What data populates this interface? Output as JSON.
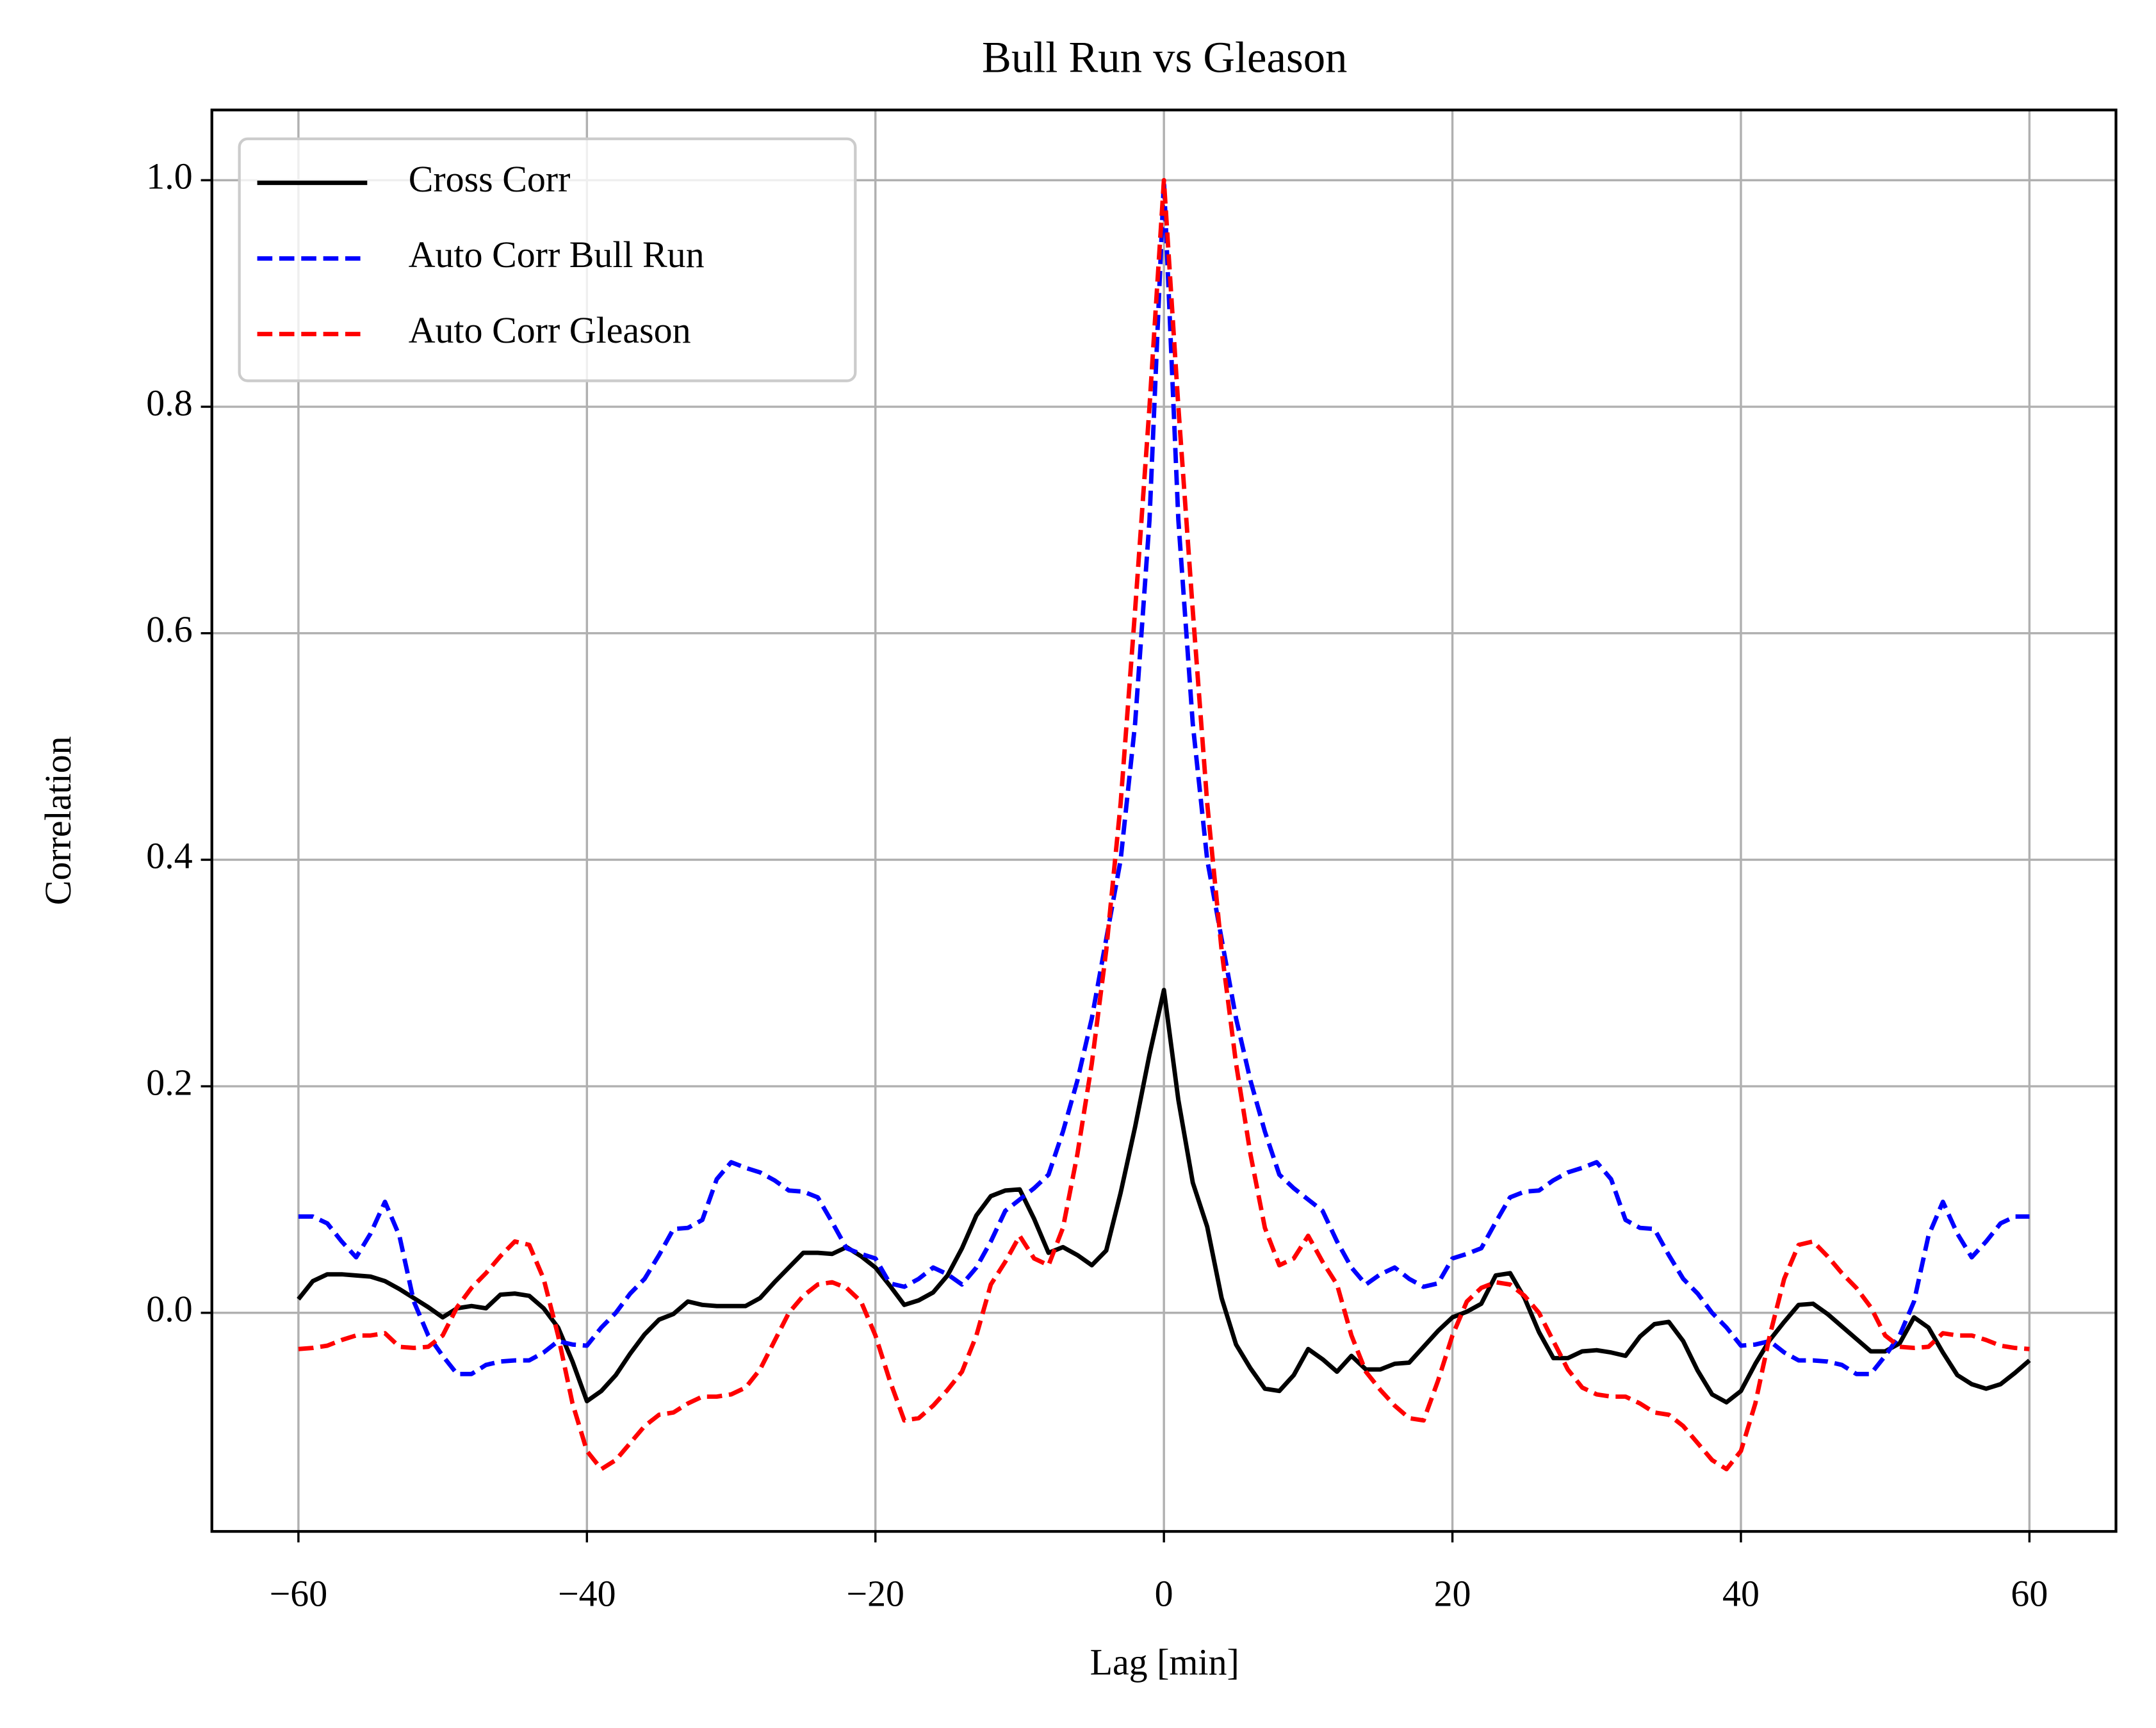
{
  "chart_data": {
    "type": "line",
    "title": "Bull Run vs Gleason",
    "x_label": "Lag [min]",
    "y_label": "Correlation",
    "x": [
      -60,
      -59,
      -58,
      -57,
      -56,
      -55,
      -54,
      -53,
      -52,
      -51,
      -50,
      -49,
      -48,
      -47,
      -46,
      -45,
      -44,
      -43,
      -42,
      -41,
      -40,
      -39,
      -38,
      -37,
      -36,
      -35,
      -34,
      -33,
      -32,
      -31,
      -30,
      -29,
      -28,
      -27,
      -26,
      -25,
      -24,
      -23,
      -22,
      -21,
      -20,
      -19,
      -18,
      -17,
      -16,
      -15,
      -14,
      -13,
      -12,
      -11,
      -10,
      -9,
      -8,
      -7,
      -6,
      -5,
      -4,
      -3,
      -2,
      -1,
      0,
      1,
      2,
      3,
      4,
      5,
      6,
      7,
      8,
      9,
      10,
      11,
      12,
      13,
      14,
      15,
      16,
      17,
      18,
      19,
      20,
      21,
      22,
      23,
      24,
      25,
      26,
      27,
      28,
      29,
      30,
      31,
      32,
      33,
      34,
      35,
      36,
      37,
      38,
      39,
      40,
      41,
      42,
      43,
      44,
      45,
      46,
      47,
      48,
      49,
      50,
      51,
      52,
      53,
      54,
      55,
      56,
      57,
      58,
      59,
      60
    ],
    "series": [
      {
        "name": "Cross Corr",
        "color": "#000000",
        "linestyle": "solid",
        "values": [
          0.012,
          0.028,
          0.034,
          0.034,
          0.033,
          0.032,
          0.028,
          0.021,
          0.013,
          0.005,
          -0.004,
          0.004,
          0.006,
          0.004,
          0.016,
          0.017,
          0.015,
          0.004,
          -0.013,
          -0.043,
          -0.078,
          -0.069,
          -0.055,
          -0.036,
          -0.019,
          -0.006,
          -0.001,
          0.01,
          0.007,
          0.006,
          0.006,
          0.006,
          0.013,
          0.027,
          0.04,
          0.053,
          0.053,
          0.052,
          0.058,
          0.05,
          0.04,
          0.024,
          0.007,
          0.011,
          0.018,
          0.033,
          0.057,
          0.086,
          0.103,
          0.108,
          0.109,
          0.083,
          0.053,
          0.058,
          0.051,
          0.042,
          0.055,
          0.106,
          0.164,
          0.228,
          0.285,
          0.188,
          0.115,
          0.076,
          0.013,
          -0.028,
          -0.049,
          -0.067,
          -0.069,
          -0.055,
          -0.032,
          -0.041,
          -0.052,
          -0.038,
          -0.05,
          -0.05,
          -0.045,
          -0.044,
          -0.03,
          -0.016,
          -0.004,
          0.001,
          0.008,
          0.033,
          0.035,
          0.013,
          -0.017,
          -0.04,
          -0.04,
          -0.034,
          -0.033,
          -0.035,
          -0.038,
          -0.021,
          -0.01,
          -0.008,
          -0.025,
          -0.051,
          -0.072,
          -0.079,
          -0.069,
          -0.045,
          -0.024,
          -0.008,
          0.007,
          0.008,
          -0.001,
          -0.012,
          -0.023,
          -0.034,
          -0.034,
          -0.027,
          -0.004,
          -0.013,
          -0.035,
          -0.055,
          -0.063,
          -0.067,
          -0.063,
          -0.053,
          -0.042
        ]
      },
      {
        "name": "Auto Corr Bull Run",
        "color": "#0000ff",
        "linestyle": "dashed",
        "values": [
          0.085,
          0.085,
          0.079,
          0.063,
          0.049,
          0.07,
          0.098,
          0.068,
          0.01,
          -0.02,
          -0.038,
          -0.054,
          -0.054,
          -0.046,
          -0.043,
          -0.042,
          -0.042,
          -0.035,
          -0.025,
          -0.028,
          -0.029,
          -0.013,
          0,
          0.017,
          0.03,
          0.051,
          0.074,
          0.075,
          0.082,
          0.118,
          0.133,
          0.128,
          0.124,
          0.117,
          0.108,
          0.107,
          0.102,
          0.08,
          0.057,
          0.052,
          0.048,
          0.026,
          0.023,
          0.03,
          0.04,
          0.034,
          0.025,
          0.04,
          0.063,
          0.09,
          0.1,
          0.11,
          0.122,
          0.16,
          0.205,
          0.26,
          0.33,
          0.4,
          0.52,
          0.7,
          1.0,
          0.7,
          0.52,
          0.4,
          0.33,
          0.26,
          0.205,
          0.16,
          0.122,
          0.11,
          0.1,
          0.09,
          0.063,
          0.04,
          0.025,
          0.034,
          0.04,
          0.03,
          0.023,
          0.026,
          0.048,
          0.052,
          0.057,
          0.08,
          0.102,
          0.107,
          0.108,
          0.117,
          0.124,
          0.128,
          0.133,
          0.118,
          0.082,
          0.075,
          0.074,
          0.051,
          0.03,
          0.017,
          0,
          -0.013,
          -0.029,
          -0.028,
          -0.025,
          -0.035,
          -0.042,
          -0.042,
          -0.043,
          -0.046,
          -0.054,
          -0.054,
          -0.038,
          -0.02,
          0.01,
          0.068,
          0.098,
          0.07,
          0.049,
          0.063,
          0.079,
          0.085,
          0.085
        ]
      },
      {
        "name": "Auto Corr Gleason",
        "color": "#ff0000",
        "linestyle": "dashed",
        "values": [
          -0.032,
          -0.031,
          -0.029,
          -0.024,
          -0.02,
          -0.02,
          -0.018,
          -0.03,
          -0.031,
          -0.03,
          -0.02,
          0.005,
          0.022,
          0.035,
          0.05,
          0.063,
          0.06,
          0.03,
          -0.02,
          -0.08,
          -0.122,
          -0.138,
          -0.13,
          -0.115,
          -0.1,
          -0.09,
          -0.088,
          -0.08,
          -0.074,
          -0.074,
          -0.072,
          -0.066,
          -0.05,
          -0.025,
          0,
          0.015,
          0.025,
          0.027,
          0.022,
          0.01,
          -0.02,
          -0.06,
          -0.095,
          -0.093,
          -0.082,
          -0.068,
          -0.052,
          -0.02,
          0.025,
          0.045,
          0.068,
          0.048,
          0.042,
          0.075,
          0.14,
          0.22,
          0.32,
          0.45,
          0.62,
          0.8,
          1.0,
          0.8,
          0.62,
          0.45,
          0.32,
          0.22,
          0.14,
          0.075,
          0.042,
          0.048,
          0.068,
          0.045,
          0.025,
          -0.02,
          -0.052,
          -0.068,
          -0.082,
          -0.093,
          -0.095,
          -0.06,
          -0.02,
          0.01,
          0.022,
          0.027,
          0.025,
          0.015,
          0,
          -0.025,
          -0.05,
          -0.066,
          -0.072,
          -0.074,
          -0.074,
          -0.08,
          -0.088,
          -0.09,
          -0.1,
          -0.115,
          -0.13,
          -0.138,
          -0.122,
          -0.08,
          -0.02,
          0.03,
          0.06,
          0.063,
          0.05,
          0.035,
          0.022,
          0.005,
          -0.02,
          -0.03,
          -0.031,
          -0.03,
          -0.018,
          -0.02,
          -0.02,
          -0.024,
          -0.029,
          -0.031,
          -0.032
        ]
      }
    ],
    "xlim": [
      -66,
      66
    ],
    "ylim": [
      -0.193,
      1.062
    ],
    "xticks": [
      {
        "value": -60,
        "label": "−60"
      },
      {
        "value": -40,
        "label": "−40"
      },
      {
        "value": -20,
        "label": "−20"
      },
      0,
      20,
      40,
      60
    ],
    "yticks": [
      {
        "value": 0,
        "label": "0.0"
      },
      0.2,
      0.4,
      0.6,
      0.8,
      {
        "value": 1,
        "label": "1.0"
      }
    ],
    "grid": true,
    "legend": "upper left"
  }
}
